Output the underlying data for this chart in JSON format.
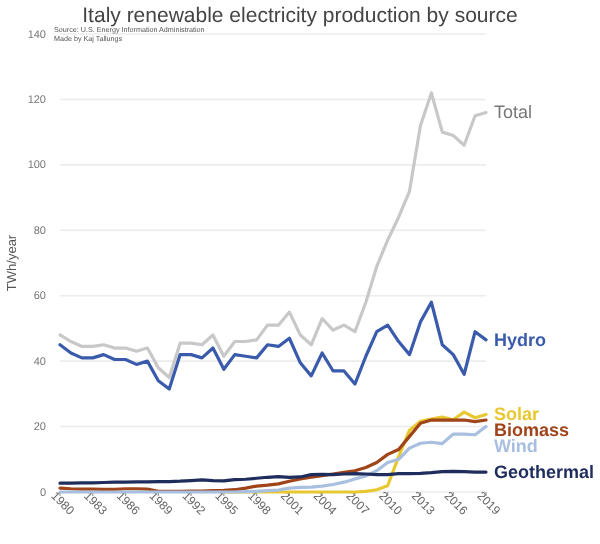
{
  "chart_data": {
    "type": "line",
    "title": "Italy renewable electricity production by source",
    "ylabel": "TWh/year",
    "annotations": [
      "Source: U.S. Energy Information Administration",
      "Made by Kaj Tallungs"
    ],
    "x": [
      1980,
      1981,
      1982,
      1983,
      1984,
      1985,
      1986,
      1987,
      1988,
      1989,
      1990,
      1991,
      1992,
      1993,
      1994,
      1995,
      1996,
      1997,
      1998,
      1999,
      2000,
      2001,
      2002,
      2003,
      2004,
      2005,
      2006,
      2007,
      2008,
      2009,
      2010,
      2011,
      2012,
      2013,
      2014,
      2015,
      2016,
      2017,
      2018,
      2019
    ],
    "xlim": [
      1980,
      2019
    ],
    "xticks": [
      1980,
      1983,
      1986,
      1989,
      1992,
      1995,
      1998,
      2001,
      2004,
      2007,
      2010,
      2013,
      2016,
      2019
    ],
    "ylim": [
      0,
      140
    ],
    "yticks": [
      0,
      20,
      40,
      60,
      80,
      100,
      120,
      140
    ],
    "grid": "y",
    "series": [
      {
        "name": "Total",
        "color": "#c8c8c8",
        "values": [
          48,
          46,
          44.5,
          44.5,
          45,
          44,
          44,
          43,
          44,
          38,
          35,
          45.5,
          45.5,
          45,
          48,
          41.5,
          46,
          46,
          46.5,
          51,
          51,
          55,
          48,
          45,
          53,
          49.5,
          51,
          49,
          58,
          69,
          77,
          84,
          92,
          112,
          122,
          110,
          109,
          106,
          115,
          116
        ]
      },
      {
        "name": "Hydro",
        "color": "#3a5bab",
        "values": [
          45,
          42.5,
          41,
          41,
          42,
          40.5,
          40.5,
          39,
          40,
          34,
          31.5,
          42,
          42,
          41,
          44,
          37.5,
          42,
          41.5,
          41,
          45,
          44.5,
          47,
          39.5,
          35.5,
          42.5,
          37,
          37,
          33,
          41.5,
          49,
          51,
          46,
          42,
          52,
          58,
          45,
          42,
          36,
          49,
          46.5
        ]
      },
      {
        "name": "Solar",
        "color": "#e8c830",
        "values": [
          null,
          null,
          null,
          null,
          null,
          null,
          null,
          null,
          null,
          null,
          null,
          null,
          null,
          null,
          null,
          0,
          0,
          0,
          0,
          0,
          0,
          0,
          0,
          0,
          0,
          0,
          0,
          0,
          0.2,
          0.7,
          1.9,
          10.8,
          18.9,
          21.6,
          22.3,
          22.9,
          22.1,
          24.4,
          22.7,
          23.7
        ]
      },
      {
        "name": "Biomass",
        "color": "#a0441a",
        "values": [
          1.2,
          1,
          0.9,
          0.9,
          0.8,
          0.8,
          1,
          1,
          0.9,
          0.2,
          0.2,
          0.2,
          0.3,
          0.3,
          0.4,
          0.5,
          0.7,
          1.2,
          1.8,
          2.1,
          2.5,
          3.3,
          4,
          4.5,
          5,
          5.5,
          6,
          6.5,
          7.5,
          9,
          11.5,
          13,
          17,
          21,
          22,
          22,
          22,
          22,
          21.5,
          22
        ]
      },
      {
        "name": "Wind",
        "color": "#a8bfe0",
        "values": [
          0,
          0,
          0,
          0,
          0,
          0,
          0,
          0,
          0,
          0,
          0,
          0,
          0,
          0,
          0,
          0,
          0,
          0.1,
          0.2,
          0.4,
          0.6,
          1.2,
          1.4,
          1.5,
          1.8,
          2.3,
          3,
          4,
          4.9,
          6.5,
          9,
          10,
          13.4,
          14.9,
          15.2,
          14.8,
          17.7,
          17.7,
          17.5,
          20
        ]
      },
      {
        "name": "Geothermal",
        "color": "#1f2d5c",
        "values": [
          2.7,
          2.7,
          2.8,
          2.8,
          2.9,
          3,
          3,
          3.1,
          3.1,
          3.2,
          3.2,
          3.3,
          3.5,
          3.7,
          3.5,
          3.4,
          3.8,
          3.9,
          4.2,
          4.5,
          4.7,
          4.5,
          4.6,
          5.3,
          5.4,
          5.3,
          5.5,
          5.6,
          5.5,
          5.3,
          5.3,
          5.6,
          5.6,
          5.7,
          5.9,
          6.2,
          6.3,
          6.2,
          6.1,
          6.1
        ]
      }
    ]
  }
}
